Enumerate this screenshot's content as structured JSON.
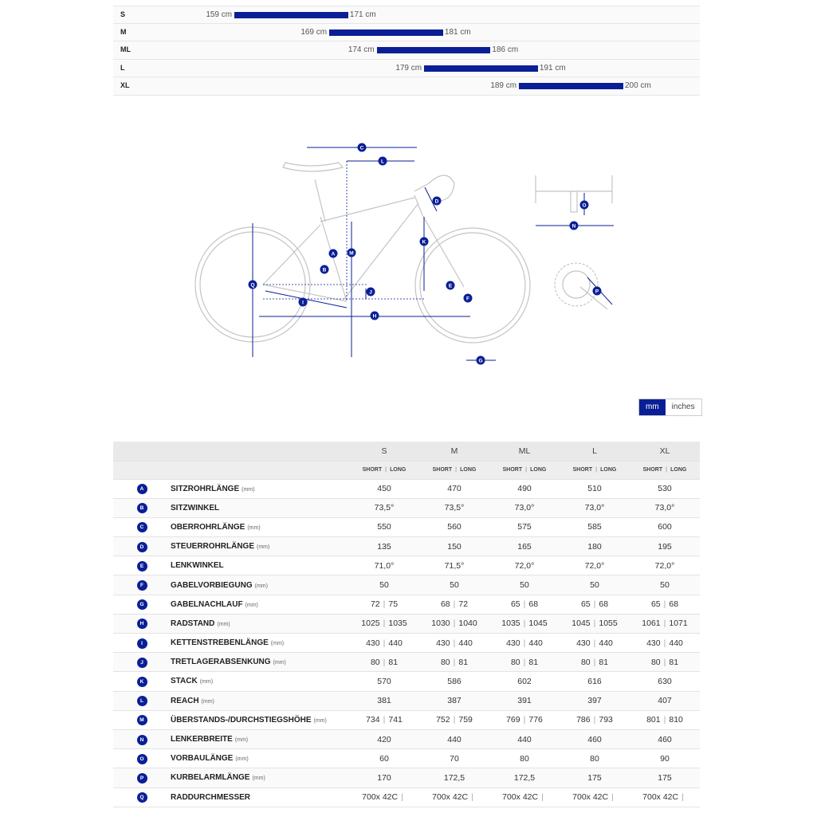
{
  "size_chart": [
    {
      "size": "S",
      "min": "159 cm",
      "max": "171 cm",
      "min_cm": 159,
      "max_cm": 171
    },
    {
      "size": "M",
      "min": "169 cm",
      "max": "181 cm",
      "min_cm": 169,
      "max_cm": 181
    },
    {
      "size": "ML",
      "min": "174 cm",
      "max": "186 cm",
      "min_cm": 174,
      "max_cm": 186
    },
    {
      "size": "L",
      "min": "179 cm",
      "max": "191 cm",
      "min_cm": 179,
      "max_cm": 191
    },
    {
      "size": "XL",
      "min": "189 cm",
      "max": "200 cm",
      "min_cm": 189,
      "max_cm": 200
    }
  ],
  "figure_labels": [
    "A",
    "B",
    "C",
    "D",
    "E",
    "F",
    "G",
    "H",
    "I",
    "J",
    "K",
    "L",
    "M",
    "N",
    "O",
    "P",
    "Q"
  ],
  "unit_toggle": {
    "mm": "mm",
    "inches": "inches",
    "active": "mm"
  },
  "table": {
    "sizes": [
      "S",
      "M",
      "ML",
      "L",
      "XL"
    ],
    "short_label": "SHORT",
    "long_label": "LONG",
    "rows": [
      {
        "letter": "A",
        "name": "SITZROHRLÄNGE",
        "unit": "(mm)",
        "values": [
          "450",
          "470",
          "490",
          "510",
          "530"
        ]
      },
      {
        "letter": "B",
        "name": "SITZWINKEL",
        "unit": "",
        "values": [
          "73,5°",
          "73,5°",
          "73,0°",
          "73,0°",
          "73,0°"
        ]
      },
      {
        "letter": "C",
        "name": "OBERROHRLÄNGE",
        "unit": "(mm)",
        "values": [
          "550",
          "560",
          "575",
          "585",
          "600"
        ]
      },
      {
        "letter": "D",
        "name": "STEUERROHRLÄNGE",
        "unit": "(mm)",
        "values": [
          "135",
          "150",
          "165",
          "180",
          "195"
        ]
      },
      {
        "letter": "E",
        "name": "LENKWINKEL",
        "unit": "",
        "values": [
          "71,0°",
          "71,5°",
          "72,0°",
          "72,0°",
          "72,0°"
        ]
      },
      {
        "letter": "F",
        "name": "GABELVORBIEGUNG",
        "unit": "(mm)",
        "values": [
          "50",
          "50",
          "50",
          "50",
          "50"
        ]
      },
      {
        "letter": "G",
        "name": "GABELNACHLAUF",
        "unit": "(mm)",
        "values": [
          [
            "72",
            "75"
          ],
          [
            "68",
            "72"
          ],
          [
            "65",
            "68"
          ],
          [
            "65",
            "68"
          ],
          [
            "65",
            "68"
          ]
        ]
      },
      {
        "letter": "H",
        "name": "RADSTAND",
        "unit": "(mm)",
        "values": [
          [
            "1025",
            "1035"
          ],
          [
            "1030",
            "1040"
          ],
          [
            "1035",
            "1045"
          ],
          [
            "1045",
            "1055"
          ],
          [
            "1061",
            "1071"
          ]
        ]
      },
      {
        "letter": "I",
        "name": "KETTENSTREBENLÄNGE",
        "unit": "(mm)",
        "values": [
          [
            "430",
            "440"
          ],
          [
            "430",
            "440"
          ],
          [
            "430",
            "440"
          ],
          [
            "430",
            "440"
          ],
          [
            "430",
            "440"
          ]
        ]
      },
      {
        "letter": "J",
        "name": "TRETLAGERABSENKUNG",
        "unit": "(mm)",
        "values": [
          [
            "80",
            "81"
          ],
          [
            "80",
            "81"
          ],
          [
            "80",
            "81"
          ],
          [
            "80",
            "81"
          ],
          [
            "80",
            "81"
          ]
        ]
      },
      {
        "letter": "K",
        "name": "STACK",
        "unit": "(mm)",
        "values": [
          "570",
          "586",
          "602",
          "616",
          "630"
        ]
      },
      {
        "letter": "L",
        "name": "REACH",
        "unit": "(mm)",
        "values": [
          "381",
          "387",
          "391",
          "397",
          "407"
        ]
      },
      {
        "letter": "M",
        "name": "ÜBERSTANDS-/DURCHSTIEGSHÖHE",
        "unit": "(mm)",
        "values": [
          [
            "734",
            "741"
          ],
          [
            "752",
            "759"
          ],
          [
            "769",
            "776"
          ],
          [
            "786",
            "793"
          ],
          [
            "801",
            "810"
          ]
        ]
      },
      {
        "letter": "N",
        "name": "LENKERBREITE",
        "unit": "(mm)",
        "values": [
          "420",
          "440",
          "440",
          "460",
          "460"
        ]
      },
      {
        "letter": "O",
        "name": "VORBAULÄNGE",
        "unit": "(mm)",
        "values": [
          "60",
          "70",
          "80",
          "80",
          "90"
        ]
      },
      {
        "letter": "P",
        "name": "KURBELARMLÄNGE",
        "unit": "(mm)",
        "values": [
          "170",
          "172,5",
          "172,5",
          "175",
          "175"
        ]
      },
      {
        "letter": "Q",
        "name": "RADDURCHMESSER",
        "unit": "",
        "values": [
          [
            "700x 42C",
            ""
          ],
          [
            "700x 42C",
            ""
          ],
          [
            "700x 42C",
            ""
          ],
          [
            "700x 42C",
            ""
          ],
          [
            "700x 42C",
            ""
          ]
        ]
      }
    ]
  },
  "colors": {
    "accent": "#0a1f96",
    "line": "#c9c9c9",
    "dim": "#0a1f96"
  }
}
